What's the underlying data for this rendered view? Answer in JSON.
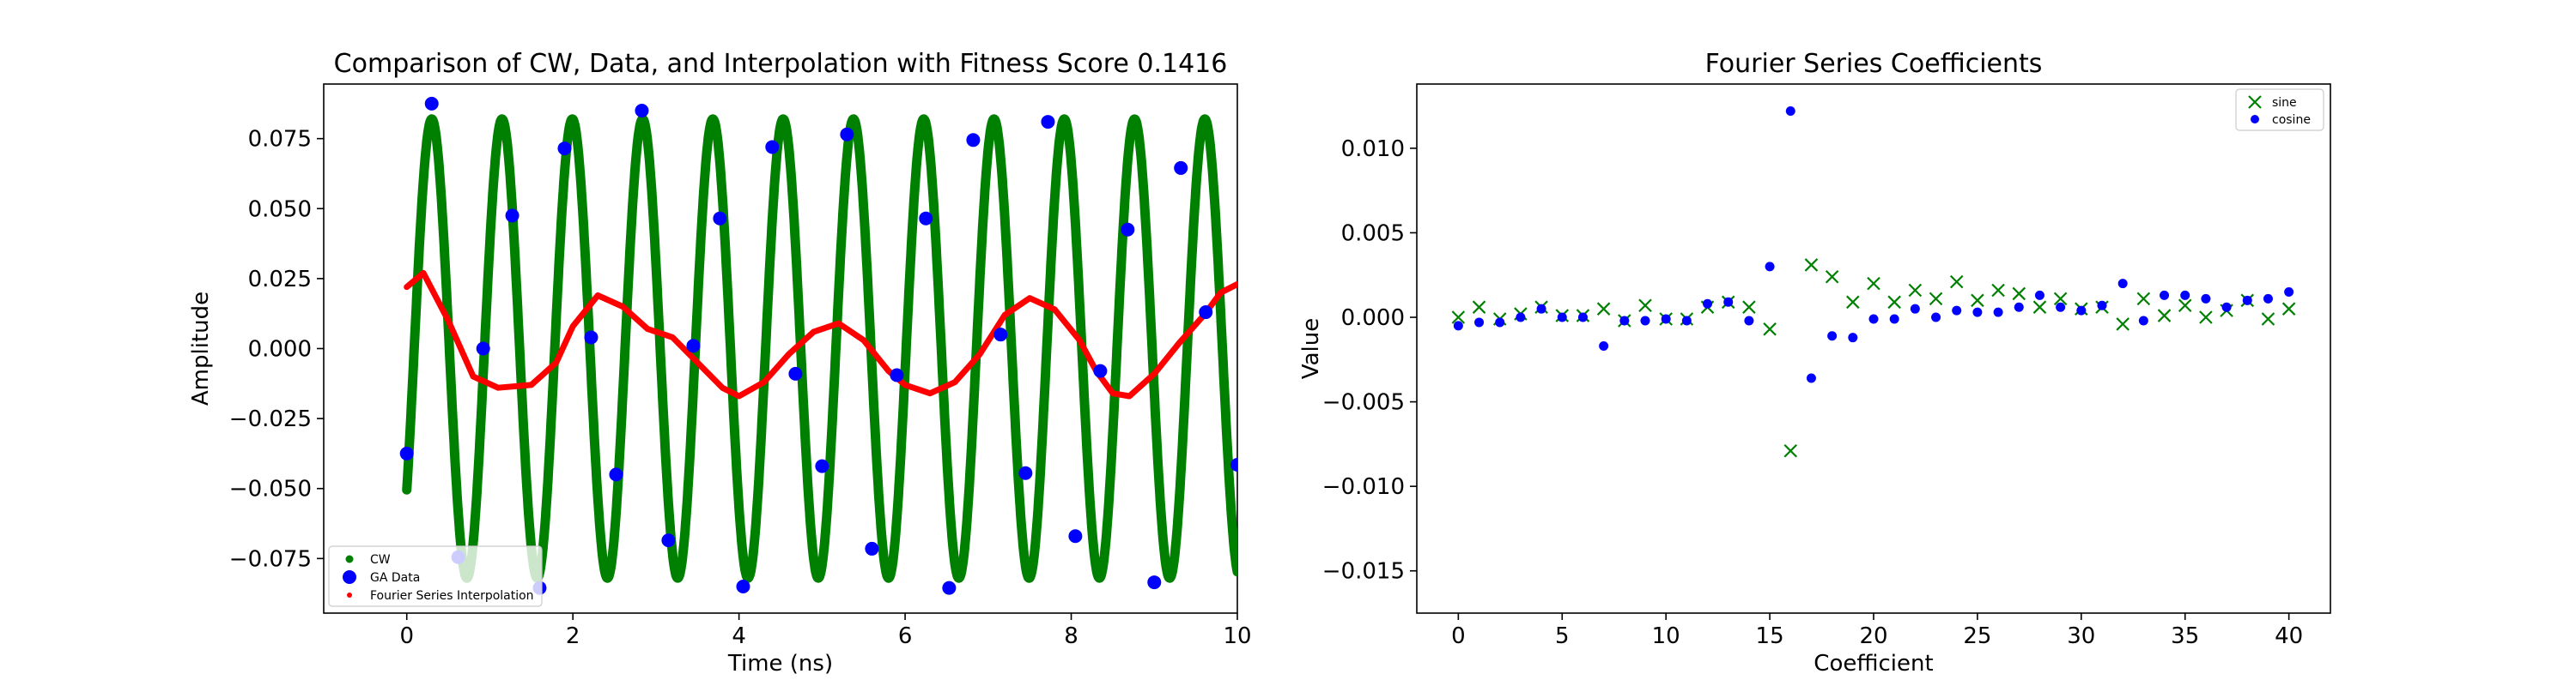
{
  "chart_data": [
    {
      "type": "line",
      "title": "Comparison of CW, Data, and Interpolation with Fitness Score 0.1416",
      "xlabel": "Time (ns)",
      "ylabel": "Amplitude",
      "xlim": [
        -1,
        10
      ],
      "ylim": [
        -0.0945,
        0.0945
      ],
      "xticks": [
        0,
        2,
        4,
        6,
        8,
        10
      ],
      "yticks": [
        -0.075,
        -0.05,
        -0.025,
        0.0,
        0.025,
        0.05,
        0.075
      ],
      "ytick_labels": [
        "−0.075",
        "−0.050",
        "−0.025",
        "0.000",
        "0.025",
        "0.050",
        "0.075"
      ],
      "grid": false,
      "legend_position": "bottom-left",
      "series": [
        {
          "name": "CW",
          "kind": "sinusoid-dense-dots",
          "color": "#008000",
          "amplitude": 0.082,
          "frequency_ghz": 1.1818,
          "phase_at_zero_deg": -38,
          "x_range": [
            0,
            10
          ]
        },
        {
          "name": "GA Data",
          "kind": "scatter",
          "color": "#0000ff",
          "x": [
            0.0,
            0.3,
            0.62,
            0.92,
            1.27,
            1.6,
            1.9,
            2.22,
            2.52,
            2.83,
            3.15,
            3.45,
            3.77,
            4.05,
            4.4,
            4.68,
            5.0,
            5.3,
            5.6,
            5.9,
            6.25,
            6.53,
            6.82,
            7.15,
            7.45,
            7.72,
            8.05,
            8.35,
            8.68,
            9.0,
            9.32,
            9.62,
            10.0
          ],
          "y": [
            -0.0375,
            0.0875,
            -0.0745,
            0.0,
            0.0475,
            -0.0855,
            0.0715,
            0.004,
            -0.045,
            0.085,
            -0.0685,
            0.001,
            0.0465,
            -0.085,
            0.072,
            -0.009,
            -0.042,
            0.0765,
            -0.0715,
            -0.0095,
            0.0465,
            -0.0855,
            0.0745,
            0.005,
            -0.0445,
            0.081,
            -0.067,
            -0.008,
            0.0425,
            -0.0835,
            0.0645,
            0.013,
            -0.0415
          ]
        },
        {
          "name": "Fourier Series Interpolation",
          "kind": "line",
          "color": "#ff0000",
          "x": [
            0.0,
            0.2,
            0.5,
            0.8,
            1.1,
            1.5,
            1.8,
            2.0,
            2.3,
            2.6,
            2.9,
            3.2,
            3.5,
            3.8,
            4.0,
            4.3,
            4.6,
            4.9,
            5.2,
            5.5,
            5.8,
            6.0,
            6.3,
            6.6,
            6.9,
            7.2,
            7.5,
            7.8,
            8.1,
            8.3,
            8.5,
            8.7,
            9.0,
            9.3,
            9.6,
            9.8,
            10.0
          ],
          "y": [
            0.022,
            0.027,
            0.01,
            -0.01,
            -0.014,
            -0.013,
            -0.005,
            0.008,
            0.019,
            0.015,
            0.007,
            0.004,
            -0.005,
            -0.014,
            -0.017,
            -0.012,
            -0.002,
            0.006,
            0.009,
            0.003,
            -0.008,
            -0.013,
            -0.016,
            -0.012,
            -0.002,
            0.012,
            0.018,
            0.014,
            0.003,
            -0.008,
            -0.016,
            -0.017,
            -0.009,
            0.002,
            0.012,
            0.02,
            0.023
          ]
        }
      ],
      "legend": [
        "CW",
        "GA Data",
        "Fourier Series Interpolation"
      ]
    },
    {
      "type": "scatter",
      "title": "Fourier Series Coefficients",
      "xlabel": "Coefficient",
      "ylabel": "Value",
      "xlim": [
        -2,
        42
      ],
      "ylim": [
        -0.0175,
        0.0138
      ],
      "xticks": [
        0,
        5,
        10,
        15,
        20,
        25,
        30,
        35,
        40
      ],
      "yticks": [
        -0.015,
        -0.01,
        -0.005,
        0.0,
        0.005,
        0.01
      ],
      "ytick_labels": [
        "−0.015",
        "−0.010",
        "−0.005",
        "0.000",
        "0.005",
        "0.010"
      ],
      "grid": false,
      "legend_position": "top-right",
      "series": [
        {
          "name": "sine",
          "marker": "x",
          "color": "#008000",
          "x": [
            0,
            1,
            2,
            3,
            4,
            5,
            6,
            7,
            8,
            9,
            10,
            11,
            12,
            13,
            14,
            15,
            16,
            17,
            18,
            19,
            20,
            21,
            22,
            23,
            24,
            25,
            26,
            27,
            28,
            29,
            30,
            31,
            32,
            33,
            34,
            35,
            36,
            37,
            38,
            39,
            40
          ],
          "y": [
            0.0,
            0.0006,
            -0.0001,
            0.0002,
            0.0006,
            0.0001,
            0.0001,
            0.0005,
            -0.0002,
            0.0007,
            -0.0001,
            -0.0001,
            0.0006,
            0.0009,
            0.0006,
            -0.0007,
            -0.0079,
            0.0031,
            0.0024,
            0.0009,
            0.002,
            0.0009,
            0.0016,
            0.0011,
            0.0021,
            0.001,
            0.0016,
            0.0014,
            0.0006,
            0.0011,
            0.0005,
            0.0006,
            -0.0004,
            0.0011,
            0.0001,
            0.0007,
            0.0,
            0.0004,
            0.001,
            -0.0001,
            0.0005
          ]
        },
        {
          "name": "cosine",
          "marker": "o",
          "color": "#0000ff",
          "x": [
            0,
            1,
            2,
            3,
            4,
            5,
            6,
            7,
            8,
            9,
            10,
            11,
            12,
            13,
            14,
            15,
            16,
            17,
            18,
            19,
            20,
            21,
            22,
            23,
            24,
            25,
            26,
            27,
            28,
            29,
            30,
            31,
            32,
            33,
            34,
            35,
            36,
            37,
            38,
            39,
            40
          ],
          "y": [
            -0.0005,
            -0.0003,
            -0.0003,
            0.0,
            0.0005,
            0.0,
            0.0,
            -0.0017,
            -0.0002,
            -0.0002,
            -0.0001,
            -0.0002,
            0.0008,
            0.0009,
            -0.0002,
            0.003,
            0.0122,
            -0.0036,
            -0.0011,
            -0.0012,
            -0.0001,
            -0.0001,
            0.0005,
            0.0,
            0.0004,
            0.0003,
            0.0003,
            0.0006,
            0.0013,
            0.0006,
            0.0004,
            0.0007,
            0.002,
            -0.0002,
            0.0013,
            0.0013,
            0.0011,
            0.0006,
            0.001,
            0.0011,
            0.0015
          ]
        }
      ],
      "legend": [
        "sine",
        "cosine"
      ]
    }
  ]
}
